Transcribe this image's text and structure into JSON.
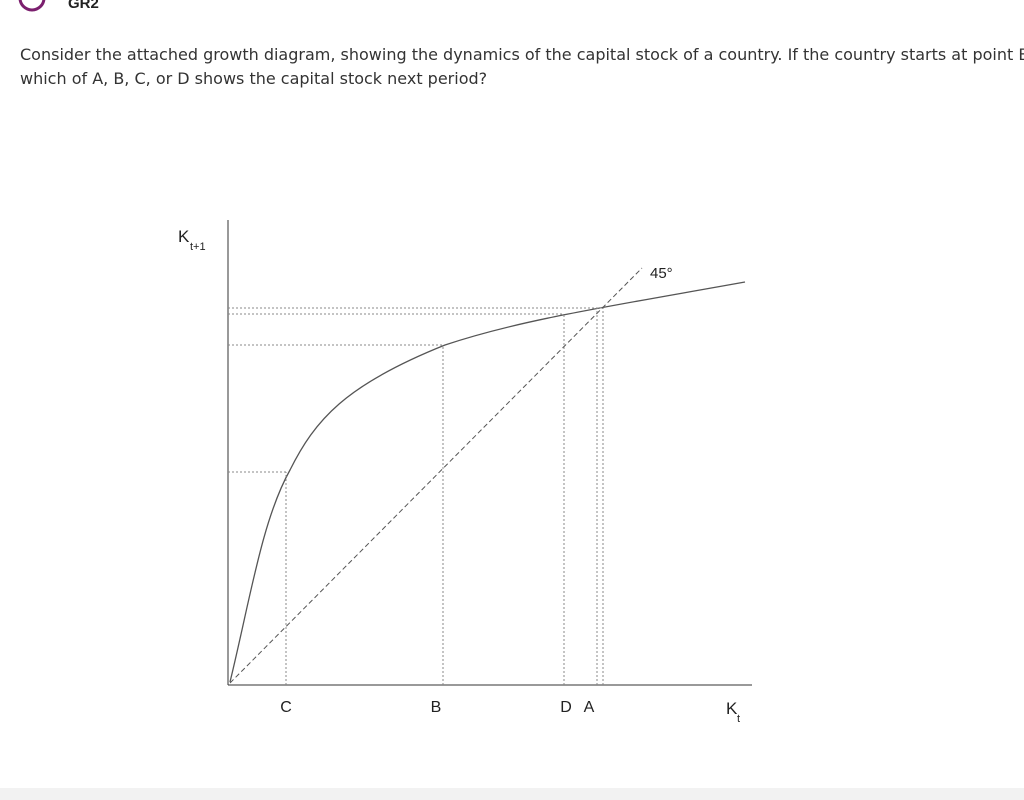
{
  "header": {
    "title": "GR2"
  },
  "question": {
    "lines": [
      "Consider the attached growth diagram, showing the dynamics of the capital stock of a country. If the country starts at point B,",
      "which of A, B, C, or D shows the capital stock next period?"
    ]
  },
  "diagram": {
    "y_axis": {
      "symbol": "K",
      "subscript": "t+1"
    },
    "x_axis": {
      "symbol": "K",
      "subscript": "t"
    },
    "line_label": "45°",
    "points": [
      "C",
      "B",
      "D",
      "A"
    ]
  }
}
